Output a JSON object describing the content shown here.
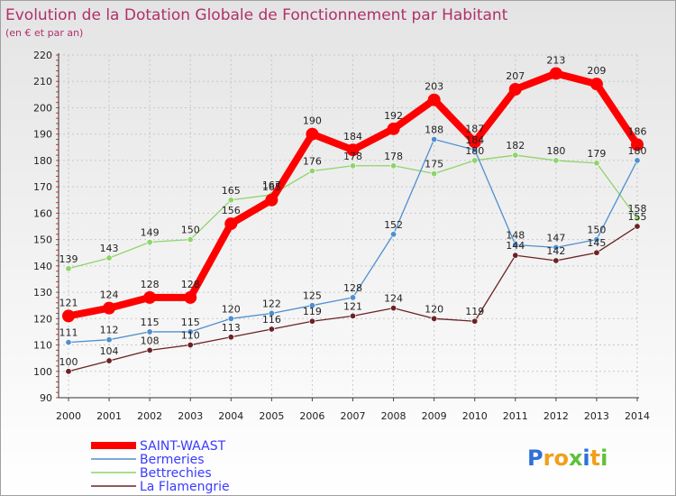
{
  "chart_data": {
    "type": "line",
    "title": "Evolution de la Dotation Globale de Fonctionnement par Habitant",
    "subtitle": "(en € et par an)",
    "xlabel": "",
    "ylabel": "",
    "ylim": [
      90,
      220
    ],
    "yticks": [
      90,
      100,
      110,
      120,
      130,
      140,
      150,
      160,
      170,
      180,
      190,
      200,
      210,
      220
    ],
    "categories": [
      "2000",
      "2001",
      "2002",
      "2003",
      "2004",
      "2005",
      "2006",
      "2007",
      "2008",
      "2009",
      "2010",
      "2011",
      "2012",
      "2013",
      "2014"
    ],
    "grid": true,
    "legend_position": "bottom-left",
    "series": [
      {
        "name": "SAINT-WAAST",
        "color": "#ff0000",
        "values": [
          121,
          124,
          128,
          128,
          156,
          165,
          190,
          184,
          192,
          203,
          187,
          207,
          213,
          209,
          186
        ]
      },
      {
        "name": "Bermeries",
        "color": "#4f8fcf",
        "values": [
          111,
          112,
          115,
          115,
          120,
          122,
          125,
          128,
          152,
          188,
          184,
          148,
          147,
          150,
          180
        ]
      },
      {
        "name": "Bettrechies",
        "color": "#8fd46a",
        "values": [
          139,
          143,
          149,
          150,
          165,
          167,
          176,
          178,
          178,
          175,
          180,
          182,
          180,
          179,
          158
        ]
      },
      {
        "name": "La Flamengrie",
        "color": "#6b2224",
        "values": [
          100,
          104,
          108,
          110,
          113,
          116,
          119,
          121,
          124,
          120,
          119,
          144,
          142,
          145,
          155
        ]
      }
    ]
  },
  "logo": {
    "letters": [
      {
        "ch": "P",
        "color": "#2f6fd8"
      },
      {
        "ch": "r",
        "color": "#f0a01a"
      },
      {
        "ch": "o",
        "color": "#f0a01a"
      },
      {
        "ch": "x",
        "color": "#5cc23a"
      },
      {
        "ch": "i",
        "color": "#2f6fd8"
      },
      {
        "ch": "t",
        "color": "#f0a01a"
      },
      {
        "ch": "i",
        "color": "#5cc23a"
      }
    ]
  }
}
